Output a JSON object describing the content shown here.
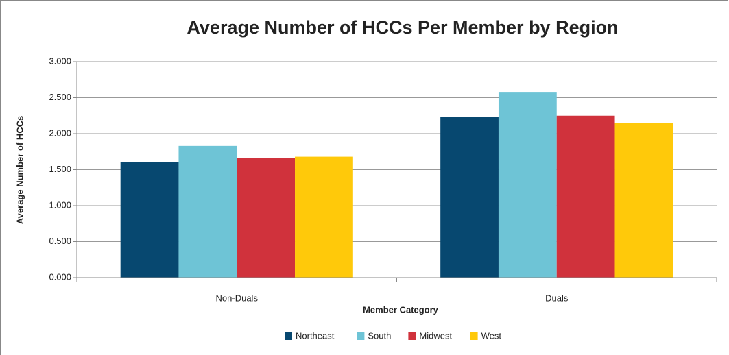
{
  "chart_data": {
    "type": "bar",
    "title": "Average Number of HCCs Per Member by Region",
    "x_label": "Member Category",
    "y_label": "Average Number of HCCs",
    "categories": [
      "Non-Duals",
      "Duals"
    ],
    "series": [
      {
        "name": "Northeast",
        "color": "#074870",
        "values": [
          1.6,
          2.23
        ]
      },
      {
        "name": "South",
        "color": "#6EC4D6",
        "values": [
          1.83,
          2.58
        ]
      },
      {
        "name": "Midwest",
        "color": "#D0323C",
        "values": [
          1.66,
          2.25
        ]
      },
      {
        "name": "West",
        "color": "#FFC90A",
        "values": [
          1.68,
          2.15
        ]
      }
    ],
    "ylim": [
      0,
      3
    ],
    "yticks": [
      {
        "value": 0,
        "label": "0.000"
      },
      {
        "value": 0.5,
        "label": "0.500"
      },
      {
        "value": 1,
        "label": "1.000"
      },
      {
        "value": 1.5,
        "label": "1.500"
      },
      {
        "value": 2,
        "label": "2.000"
      },
      {
        "value": 2.5,
        "label": "2.500"
      },
      {
        "value": 3,
        "label": "3.000"
      }
    ],
    "grid": true,
    "legend": "bottom"
  }
}
